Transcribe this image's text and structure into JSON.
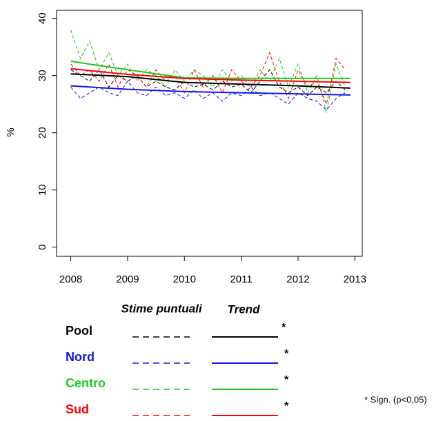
{
  "chart_data": {
    "type": "line",
    "y_label": "%",
    "x": [
      2008,
      2008.17,
      2008.33,
      2008.5,
      2008.67,
      2008.83,
      2009,
      2009.17,
      2009.33,
      2009.5,
      2009.67,
      2009.83,
      2010,
      2010.17,
      2010.33,
      2010.5,
      2010.67,
      2010.83,
      2011,
      2011.17,
      2011.33,
      2011.5,
      2011.67,
      2011.83,
      2012,
      2012.17,
      2012.33,
      2012.5,
      2012.67,
      2012.83
    ],
    "trend_x": [
      2008,
      2009,
      2010,
      2011,
      2012,
      2012.92
    ],
    "xlim": [
      2007.75,
      2013.13
    ],
    "ylim": [
      -1.6,
      41.4
    ],
    "xticks": [
      2008,
      2009,
      2010,
      2011,
      2012,
      2013
    ],
    "yticks": [
      0,
      10,
      20,
      30,
      40
    ],
    "legend_header_points": "Stime puntuali",
    "legend_header_trend": "Trend",
    "footnote": "* Sign. (p<0,05)",
    "series": [
      {
        "name": "Pool",
        "color": "#000000",
        "sig": "*",
        "values": [
          31,
          30,
          29,
          31,
          28,
          30,
          29,
          30,
          28,
          29,
          28,
          27.5,
          29,
          28,
          28.5,
          27.5,
          29,
          28,
          28.5,
          27,
          29,
          31,
          28,
          27,
          28,
          26.5,
          28,
          27,
          29,
          27.5
        ],
        "trend": [
          30.3,
          29.8,
          28.8,
          28.5,
          28.2,
          27.8
        ]
      },
      {
        "name": "Nord",
        "color": "#1414e6",
        "sig": "*",
        "values": [
          28,
          26,
          27,
          28,
          27,
          26.5,
          29,
          27,
          26.5,
          28,
          26.5,
          27,
          26,
          27.5,
          26,
          27,
          25.5,
          27,
          26.5,
          28,
          26.5,
          27,
          26,
          25,
          27,
          26,
          25.5,
          24,
          26,
          27
        ],
        "trend": [
          28.2,
          27.6,
          27.2,
          27,
          26.8,
          26.6
        ]
      },
      {
        "name": "Centro",
        "color": "#1ec81e",
        "sig": "*",
        "values": [
          38,
          33,
          36,
          31,
          34,
          30,
          32,
          29,
          31,
          30,
          28,
          31,
          29,
          31,
          30,
          28,
          31,
          29,
          30,
          28,
          31,
          29,
          33,
          28,
          32,
          27,
          30,
          23.5,
          32,
          28
        ],
        "trend": [
          32.5,
          31,
          29.6,
          29.5,
          29.5,
          29.5
        ]
      },
      {
        "name": "Sud",
        "color": "#ff0000",
        "sig": "*",
        "values": [
          32,
          30,
          31,
          29,
          32,
          28,
          31,
          30,
          28,
          31,
          29,
          30,
          27,
          31,
          28,
          30,
          27,
          31,
          29,
          28,
          30,
          34,
          29,
          26,
          31,
          28,
          29,
          25,
          33,
          31
        ],
        "trend": [
          31.2,
          30.2,
          29.5,
          29.2,
          29,
          28.8
        ]
      }
    ]
  }
}
